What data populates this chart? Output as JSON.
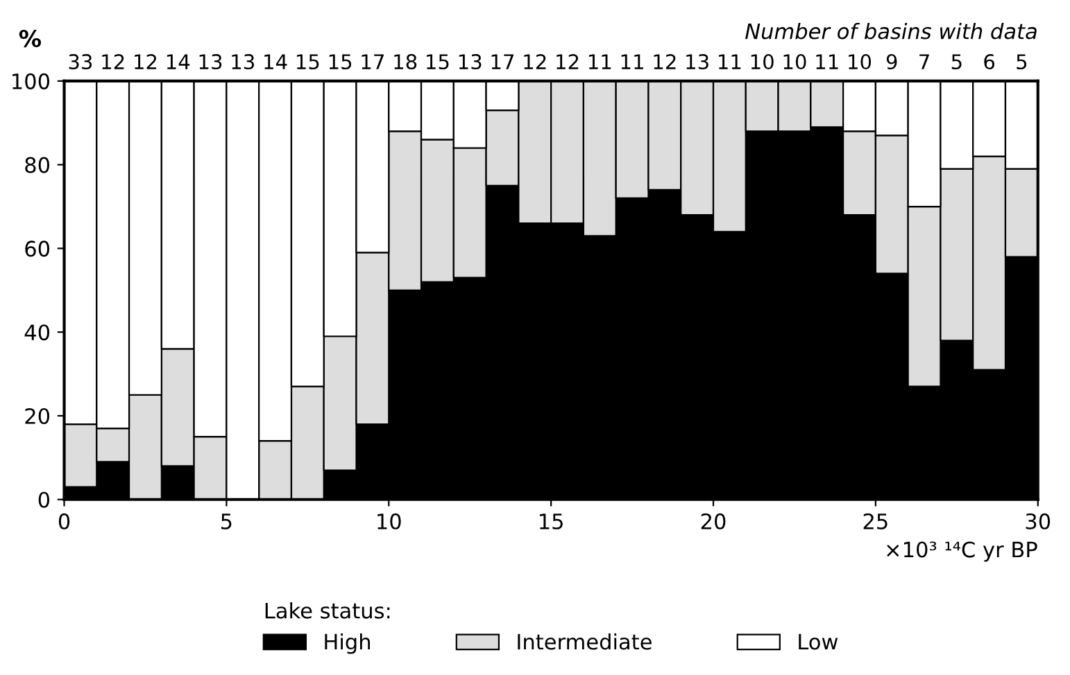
{
  "chart_data": {
    "type": "bar",
    "stacked": true,
    "xlabel": "×10³ ¹⁴C yr BP",
    "ylabel": "%",
    "legend_title": "Lake status:",
    "x": [
      0.5,
      1.5,
      2.5,
      3.5,
      4.5,
      5.5,
      6.5,
      7.5,
      8.5,
      9.5,
      10.5,
      11.5,
      12.5,
      13.5,
      14.5,
      15.5,
      16.5,
      17.5,
      18.5,
      19.5,
      20.5,
      21.5,
      22.5,
      23.5,
      24.5,
      25.5,
      26.5,
      27.5,
      28.5,
      29.5
    ],
    "series": [
      {
        "name": "High",
        "color": "#000000",
        "values": [
          3,
          9,
          0,
          8,
          0,
          0,
          0,
          0,
          7,
          18,
          50,
          52,
          53,
          75,
          66,
          66,
          63,
          72,
          74,
          68,
          64,
          88,
          88,
          89,
          68,
          54,
          27,
          38,
          31,
          58
        ]
      },
      {
        "name": "Intermediate",
        "color": "#dddddd",
        "values": [
          15,
          8,
          25,
          28,
          15,
          0,
          14,
          27,
          32,
          41,
          38,
          34,
          31,
          18,
          34,
          34,
          37,
          28,
          26,
          32,
          36,
          12,
          12,
          11,
          20,
          33,
          43,
          41,
          51,
          21
        ]
      },
      {
        "name": "Low",
        "color": "#ffffff",
        "values": [
          82,
          83,
          75,
          64,
          85,
          100,
          86,
          73,
          61,
          41,
          12,
          14,
          16,
          7,
          0,
          0,
          0,
          0,
          0,
          0,
          0,
          0,
          0,
          0,
          12,
          13,
          30,
          21,
          18,
          21
        ]
      }
    ],
    "xlim": [
      0,
      30
    ],
    "xticks": [
      0,
      5,
      10,
      15,
      20,
      25,
      30
    ],
    "ylim": [
      0,
      100
    ],
    "yticks": [
      0,
      20,
      40,
      60,
      80,
      100
    ],
    "annotations": [
      "Number of basins with data",
      {
        "text": "33",
        "x": 0.5,
        "y": 100
      },
      {
        "text": "12",
        "x": 1.5,
        "y": 100
      },
      {
        "text": "12",
        "x": 2.5,
        "y": 100
      },
      {
        "text": "14",
        "x": 3.5,
        "y": 100
      },
      {
        "text": "13",
        "x": 4.5,
        "y": 100
      },
      {
        "text": "13",
        "x": 5.5,
        "y": 100
      },
      {
        "text": "14",
        "x": 6.5,
        "y": 100
      },
      {
        "text": "15",
        "x": 7.5,
        "y": 100
      },
      {
        "text": "15",
        "x": 8.5,
        "y": 100
      },
      {
        "text": "17",
        "x": 9.5,
        "y": 100
      },
      {
        "text": "18",
        "x": 10.5,
        "y": 100
      },
      {
        "text": "15",
        "x": 11.5,
        "y": 100
      },
      {
        "text": "13",
        "x": 12.5,
        "y": 100
      },
      {
        "text": "17",
        "x": 13.5,
        "y": 100
      },
      {
        "text": "12",
        "x": 14.5,
        "y": 100
      },
      {
        "text": "12",
        "x": 15.5,
        "y": 100
      },
      {
        "text": "11",
        "x": 16.5,
        "y": 100
      },
      {
        "text": "11",
        "x": 17.5,
        "y": 100
      },
      {
        "text": "12",
        "x": 18.5,
        "y": 100
      },
      {
        "text": "13",
        "x": 19.5,
        "y": 100
      },
      {
        "text": "11",
        "x": 20.5,
        "y": 100
      },
      {
        "text": "10",
        "x": 21.5,
        "y": 100
      },
      {
        "text": "10",
        "x": 22.5,
        "y": 100
      },
      {
        "text": "11",
        "x": 23.5,
        "y": 100
      },
      {
        "text": "10",
        "x": 24.5,
        "y": 100
      },
      {
        "text": "9",
        "x": 25.5,
        "y": 100
      },
      {
        "text": "7",
        "x": 26.5,
        "y": 100
      },
      {
        "text": "5",
        "x": 27.5,
        "y": 100
      },
      {
        "text": "6",
        "x": 28.5,
        "y": 100
      },
      {
        "text": "5",
        "x": 29.5,
        "y": 100
      }
    ],
    "grid": false,
    "legend": "bottom"
  }
}
